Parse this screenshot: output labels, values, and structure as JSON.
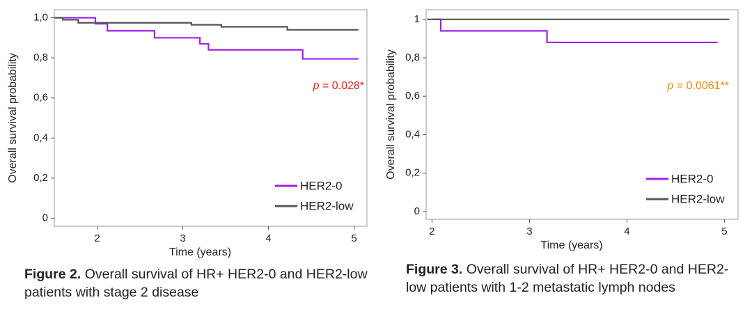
{
  "chart_data": [
    {
      "type": "step",
      "figure_label": "Figure 2.",
      "caption": "Overall survival of HR+ HER2-0 and HER2-low patients with stage 2 disease",
      "x_label": "Time (years)",
      "y_label": "Overall survival probability",
      "annotation_symbol": "p",
      "annotation_text": "= 0.028*",
      "annotation_color": "#e8201c",
      "xlim": [
        1.5,
        5.15
      ],
      "xticks": [
        2,
        3,
        4,
        5
      ],
      "ylim": [
        -0.04,
        1.04
      ],
      "yticks": [
        {
          "value": 1.0,
          "label": "1,0"
        },
        {
          "value": 0.8,
          "label": "0,8"
        },
        {
          "value": 0.6,
          "label": "0,6"
        },
        {
          "value": 0.4,
          "label": "0,4"
        },
        {
          "value": 0.2,
          "label": "0,2"
        },
        0
      ],
      "legend": "lower right",
      "series": [
        {
          "name": "HER2-0",
          "color": "#a020f0",
          "x": [
            1.5,
            1.98,
            2.12,
            2.67,
            3.2,
            3.3,
            4.4,
            5.05
          ],
          "values": [
            1,
            0.97,
            0.935,
            0.9,
            0.87,
            0.84,
            0.795,
            0.795
          ]
        },
        {
          "name": "HER2-low",
          "color": "#555555",
          "x": [
            1.5,
            1.6,
            1.78,
            3.1,
            3.45,
            4.22,
            5.05
          ],
          "values": [
            1,
            0.99,
            0.975,
            0.965,
            0.955,
            0.94,
            0.94
          ]
        }
      ]
    },
    {
      "type": "step",
      "figure_label": "Figure 3.",
      "caption": "Overall survival of HR+ HER2-0 and HER2-low patients with 1-2 metastatic lymph nodes",
      "x_label": "Time (years)",
      "y_label": "Overall survival probability",
      "annotation_symbol": "p",
      "annotation_text": "= 0.0061**",
      "annotation_color": "#f08a00",
      "xlim": [
        1.94,
        5.14
      ],
      "xticks": [
        2,
        3,
        4,
        5
      ],
      "ylim": [
        -0.04,
        1.05
      ],
      "yticks": [
        1,
        {
          "value": 0.8,
          "label": "0,8"
        },
        {
          "value": 0.6,
          "label": "0,6"
        },
        {
          "value": 0.4,
          "label": "0,4"
        },
        {
          "value": 0.2,
          "label": "0,2"
        },
        0
      ],
      "legend": "lower right",
      "series": [
        {
          "name": "HER2-0",
          "color": "#a020f0",
          "x": [
            2,
            2.09,
            3.18,
            4.93
          ],
          "values": [
            1,
            0.94,
            0.88,
            0.88
          ]
        },
        {
          "name": "HER2-low",
          "color": "#555555",
          "x": [
            1.95,
            5.05
          ],
          "values": [
            1,
            1
          ]
        }
      ]
    }
  ]
}
